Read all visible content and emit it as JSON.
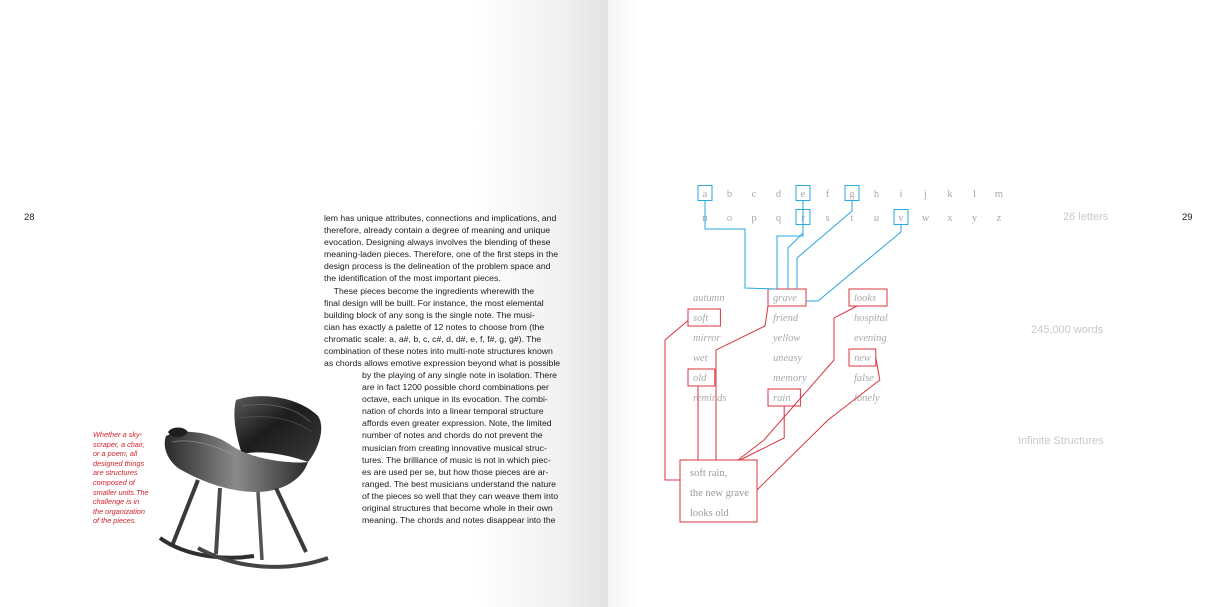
{
  "left_page": {
    "page_number": "28",
    "column_upper": [
      "lem has unique attributes, connections and implications, and",
      "therefore, already contain a degree of meaning and unique",
      "evocation. Designing always involves the blending of these",
      "meaning-laden pieces. Therefore, one of the first steps in the",
      "design process is the delineation of the problem space and",
      "the identification of the most important pieces.",
      "    These pieces become the ingredients wherewith the",
      "final design will be built. For instance, the most elemental",
      "building block of any song is the single note. The musi-",
      "cian has exactly a palette of 12 notes to choose from (the",
      "chromatic scale: a, a#, b, c, c#, d, d#, e, f, f#, g, g#). The",
      "combination of these notes into multi-note structures known",
      "as chords allows emotive expression beyond what is possible"
    ],
    "column_lower": [
      "by the playing of any single note in isolation. There",
      "are in fact 1200 possible chord combinations per",
      "octave, each unique in its evocation. The combi-",
      "nation of chords into a linear temporal structure",
      "affords even greater expression. Note, the limited",
      "number of notes and chords do not prevent the",
      "musician from creating innovative musical struc-",
      "tures. The brilliance of music is not in which piec-",
      "es are used per se, but how those pieces are ar-",
      "ranged. The best musicians understand the nature",
      "of the pieces so well that they can weave them into",
      "original structures that become whole in their own",
      "meaning. The chords and notes disappear into the"
    ],
    "caption": [
      "Whether a sky-",
      "scraper, a chair,",
      "or a poem, all",
      "designed things",
      "are structures",
      "composed of",
      "smaller units.The",
      "challenge is in",
      "the organization",
      "of the pieces."
    ]
  },
  "right_page": {
    "page_number": "29",
    "letters_row1": [
      "a",
      "b",
      "c",
      "d",
      "e",
      "f",
      "g",
      "h",
      "i",
      "j",
      "k",
      "l",
      "m"
    ],
    "letters_row2": [
      "n",
      "o",
      "p",
      "q",
      "r",
      "s",
      "t",
      "u",
      "v",
      "w",
      "x",
      "y",
      "z"
    ],
    "highlighted_letters": [
      "a",
      "e",
      "g",
      "r",
      "v"
    ],
    "words_columns": [
      [
        "autumn",
        "soft",
        "mirror",
        "wet",
        "old",
        "reminds"
      ],
      [
        "grave",
        "friend",
        "yellow",
        "uneasy",
        "memory",
        "rain"
      ],
      [
        "looks",
        "hospital",
        "evening",
        "new",
        "false",
        "lonely"
      ]
    ],
    "highlighted_words": [
      "soft",
      "old",
      "grave",
      "rain",
      "looks",
      "new"
    ],
    "poem_lines": [
      "soft rain,",
      "the new grave",
      "looks old"
    ],
    "labels": {
      "letters": "26 letters",
      "words": "245,000 words",
      "structures": "Infinite Structures"
    },
    "colors": {
      "letter_box": "#2aa6e0",
      "word_box": "#d9353f",
      "muted_text": "#a9a9a9",
      "label_text": "#c9c9c9"
    }
  }
}
